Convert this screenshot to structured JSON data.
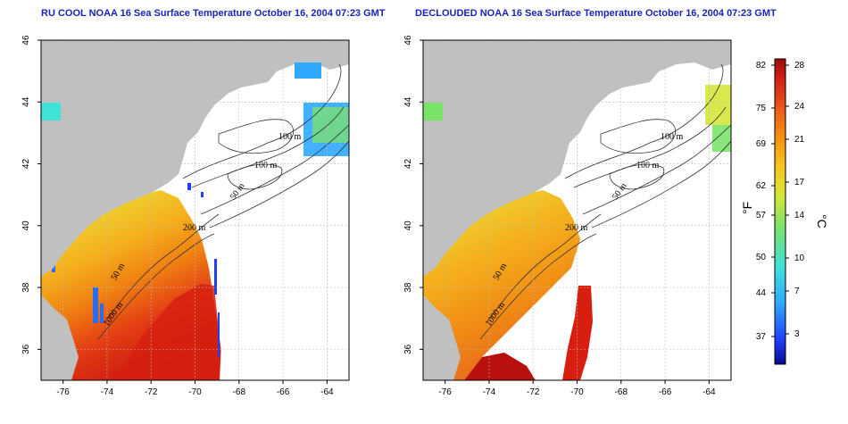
{
  "panels": [
    {
      "id": "left",
      "title": "RU COOL NOAA 16 Sea Surface Temperature October 16, 2004 07:23 GMT",
      "contour_labels": [
        "100 m",
        "100 m",
        "50 m",
        "200 m",
        "50 m",
        "1000 m"
      ]
    },
    {
      "id": "right",
      "title": "DECLOUDED NOAA 16 Sea Surface Temperature October 16, 2004 07:23 GMT",
      "contour_labels": [
        "100 m",
        "100 m",
        "50 m",
        "200 m",
        "50 m",
        "1000 m"
      ]
    }
  ],
  "axes": {
    "x_ticks": [
      "-76",
      "-74",
      "-72",
      "-70",
      "-68",
      "-66",
      "-64"
    ],
    "y_ticks": [
      "36",
      "38",
      "40",
      "42",
      "44",
      "46"
    ],
    "x_range": [
      -77,
      -63
    ],
    "y_range": [
      35,
      46
    ]
  },
  "colorbar": {
    "fahrenheit_label": "°F",
    "celsius_label": "°C",
    "fahrenheit_ticks": [
      "82",
      "75",
      "69",
      "62",
      "57",
      "50",
      "44",
      "37"
    ],
    "celsius_ticks": [
      "28",
      "24",
      "21",
      "17",
      "14",
      "10",
      "7",
      "3"
    ],
    "colors": [
      "#0a0a8c",
      "#1f3fff",
      "#2fa8ff",
      "#41e2d8",
      "#7ce36a",
      "#d4e53a",
      "#f7c51e",
      "#f58c12",
      "#e8501a",
      "#cf1d14",
      "#9c0d0d"
    ]
  },
  "colors": {
    "land": "#c0c0c0",
    "shelf_water": "#ffffff",
    "contour": "#333333",
    "grid": "#bbbbbb"
  }
}
